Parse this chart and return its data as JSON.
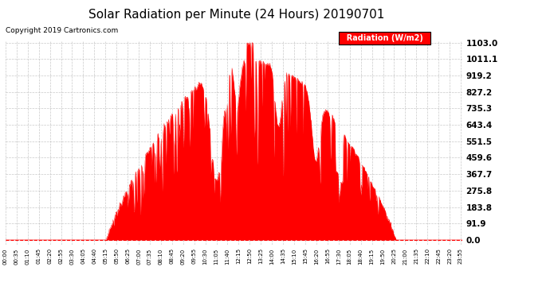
{
  "title": "Solar Radiation per Minute (24 Hours) 20190701",
  "copyright": "Copyright 2019 Cartronics.com",
  "legend_label": "Radiation (W/m2)",
  "yticks": [
    0.0,
    91.9,
    183.8,
    275.8,
    367.7,
    459.6,
    551.5,
    643.4,
    735.3,
    827.2,
    919.2,
    1011.1,
    1103.0
  ],
  "ymax": 1103.0,
  "fill_color": "#FF0000",
  "line_color": "#FF0000",
  "legend_bg": "#FF0000",
  "legend_text_color": "#FFFFFF",
  "dashed_line_color": "#FF0000",
  "grid_color": "#BBBBBB",
  "background_color": "#FFFFFF",
  "title_fontsize": 11,
  "copyright_fontsize": 6.5,
  "ytick_fontsize": 7.5,
  "xtick_fontsize": 5,
  "xtick_interval_minutes": 35,
  "sunrise_minute": 318,
  "sunset_minute": 1230,
  "peak_minute": 770,
  "peak_value": 1103.0
}
